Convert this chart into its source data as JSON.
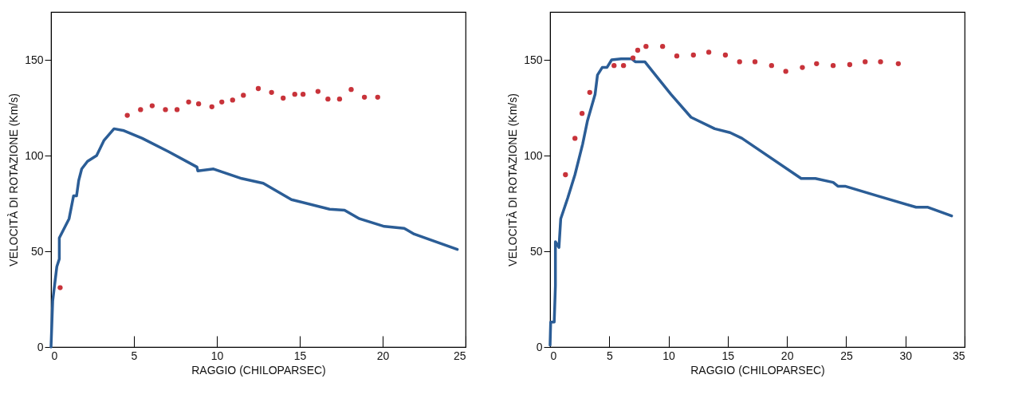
{
  "chart_data": [
    {
      "type": "line",
      "xlabel": "RAGGIO (CHILOPARSEC)",
      "ylabel": "VELOCITÀ DI ROTAZIONE (Km/s)",
      "xlim": [
        0,
        25
      ],
      "ylim": [
        0,
        175
      ],
      "xticks": [
        0,
        5,
        10,
        15,
        20,
        25
      ],
      "yticks": [
        0,
        50,
        100,
        150
      ],
      "grid": false,
      "series": [
        {
          "color": "#2b5d96",
          "x": [
            0,
            0.1,
            0.35,
            0.5,
            0.5,
            1.09,
            1.36,
            1.54,
            1.67,
            1.85,
            2.2,
            2.75,
            3.2,
            3.8,
            4.4,
            5.5,
            7.1,
            8.8,
            8.85,
            9.8,
            11.5,
            12.8,
            14.5,
            16.8,
            17.7,
            18.6,
            20.1,
            21.3,
            21.9,
            24.5
          ],
          "values": [
            0,
            24,
            42,
            46,
            57,
            67,
            79,
            79,
            87,
            93,
            97,
            100,
            108,
            114,
            113,
            109,
            102,
            94,
            92,
            93,
            88,
            85.5,
            77,
            72,
            71.5,
            67,
            63,
            62,
            59,
            51
          ]
        },
        {
          "type": "scatter",
          "color": "#c8333a",
          "marker": "circle",
          "x": [
            0.55,
            4.6,
            5.4,
            6.1,
            6.9,
            7.6,
            8.3,
            8.9,
            9.7,
            10.3,
            10.95,
            11.6,
            12.5,
            13.3,
            14.0,
            14.7,
            15.2,
            16.1,
            16.7,
            17.4,
            18.1,
            18.9,
            19.7
          ],
          "values": [
            31,
            121,
            124,
            126,
            124,
            124,
            128,
            127,
            125.5,
            128,
            129,
            131.5,
            135,
            133,
            130,
            132,
            132,
            133.5,
            129.5,
            129.5,
            134.5,
            130.5,
            130.5
          ]
        }
      ]
    },
    {
      "type": "line",
      "xlabel": "RAGGIO (CHILOPARSEC)",
      "ylabel": "VELOCITÀ DI ROTAZIONE (Km/s)",
      "xlim": [
        0,
        35
      ],
      "ylim": [
        0,
        175
      ],
      "xticks": [
        0,
        5,
        10,
        15,
        20,
        25,
        30,
        35
      ],
      "yticks": [
        0,
        50,
        100,
        150
      ],
      "grid": false,
      "series": [
        {
          "color": "#2b5d96",
          "x": [
            0,
            0.05,
            0.35,
            0.45,
            0.45,
            0.75,
            0.9,
            1.5,
            2.1,
            2.75,
            3.15,
            3.8,
            4.0,
            4.4,
            4.8,
            5.2,
            6.0,
            6.9,
            7.2,
            8.0,
            8.9,
            10.2,
            11.9,
            13.9,
            15.2,
            16.2,
            21.2,
            22.4,
            23.9,
            24.3,
            24.9,
            27.6,
            30.9,
            31.9,
            33.9
          ],
          "values": [
            1,
            13,
            13,
            32,
            55,
            52,
            67,
            78,
            90,
            106,
            118,
            132,
            142,
            146,
            146,
            150,
            150.5,
            150.5,
            149,
            149,
            142,
            132,
            120,
            114,
            112,
            109,
            88,
            88,
            86,
            84,
            84,
            79,
            73,
            73,
            68.5
          ]
        },
        {
          "type": "scatter",
          "color": "#c8333a",
          "marker": "circle",
          "x": [
            1.3,
            2.1,
            2.7,
            3.35,
            5.4,
            6.2,
            7.0,
            7.4,
            8.1,
            9.5,
            10.7,
            12.1,
            13.4,
            14.8,
            16.0,
            17.3,
            18.7,
            19.9,
            21.3,
            22.5,
            23.9,
            25.3,
            26.6,
            27.9,
            29.4
          ],
          "values": [
            90,
            109,
            122,
            133,
            147,
            147,
            151,
            155,
            157,
            157,
            152,
            152.5,
            154,
            152.5,
            149,
            149,
            147,
            144,
            146,
            148,
            147,
            147.5,
            149,
            149,
            148
          ]
        }
      ]
    }
  ]
}
